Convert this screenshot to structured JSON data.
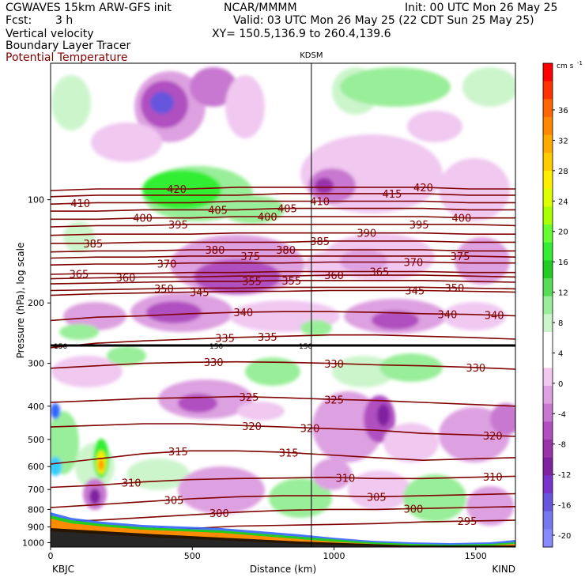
{
  "header": {
    "model": "CGWAVES 15km ARW-GFS init",
    "org": "NCAR/MMMM",
    "init": "Init: 00 UTC Mon 26 May 25",
    "fcst_label": "Fcst:",
    "fcst_value": "3 h",
    "valid": "Valid: 03 UTC Mon 26 May 25 (22 CDT Sun 25 May 25)",
    "field1": "Vertical velocity",
    "field2": "Boundary Layer Tracer",
    "field3": "Potential Temperature",
    "xy": "XY= 150.5,136.9 to 260.4,139.6"
  },
  "colors": {
    "theta_line": "#800000",
    "terrain": "#ff8c00",
    "upward_shading": "#33dd33",
    "downward_shading": "#9933bb"
  },
  "chart_data": {
    "type": "contour_cross_section",
    "title": "",
    "xlabel": "Distance (km)",
    "ylabel": "Pressure (hPa), log scale",
    "x_ticks": [
      0,
      500,
      1000,
      1500
    ],
    "xlim": [
      0,
      1640
    ],
    "y_ticks": [
      100,
      200,
      300,
      400,
      500,
      600,
      700,
      800,
      900,
      1000
    ],
    "y_scale": "log",
    "ylim": [
      1030,
      40
    ],
    "left_station": "KBJC",
    "right_station": "KIND",
    "marker_label": "KDSM",
    "marker_x_km": 920,
    "tropopause_label": "150",
    "colorbar": {
      "unit": "cm s",
      "unit_exp": "-1",
      "tick_labels": [
        "36",
        "32",
        "28",
        "24",
        "20",
        "16",
        "12",
        "8",
        "4",
        "0",
        "-4",
        "-8",
        "-12",
        "-16",
        "-20"
      ],
      "colors": [
        "#ff0000",
        "#ff3300",
        "#ff6600",
        "#ff8800",
        "#ffaa00",
        "#ffcc00",
        "#ffee00",
        "#ddff00",
        "#aaff00",
        "#66ff33",
        "#33ee33",
        "#22cc22",
        "#55dd55",
        "#99ee99",
        "#ccf5cc",
        "#ffffff",
        "#ffffff",
        "#f0c8f0",
        "#dda0e0",
        "#c878d0",
        "#b050c0",
        "#9933aa",
        "#8022a0",
        "#7733cc",
        "#6655dd",
        "#7777ee",
        "#8888ff"
      ]
    },
    "isentropes": [
      {
        "theta": 295,
        "p": [
          980,
          950,
          930,
          910,
          895,
          890,
          885,
          880,
          870,
          865,
          860
        ],
        "labels": [
          {
            "x": 365,
            "text": "295"
          },
          {
            "x": 1470,
            "text": "295"
          }
        ]
      },
      {
        "theta": 300,
        "p": [
          870,
          860,
          845,
          830,
          815,
          805,
          800,
          800,
          795,
          790,
          785
        ],
        "labels": [
          {
            "x": 595,
            "text": "300"
          },
          {
            "x": 1280,
            "text": "300"
          }
        ]
      },
      {
        "theta": 305,
        "p": [
          790,
          775,
          760,
          745,
          735,
          730,
          730,
          735,
          730,
          725,
          720
        ],
        "labels": [
          {
            "x": 435,
            "text": "305"
          },
          {
            "x": 1150,
            "text": "305"
          }
        ]
      },
      {
        "theta": 310,
        "p": [
          690,
          680,
          665,
          655,
          650,
          648,
          645,
          650,
          650,
          645,
          640
        ],
        "labels": [
          {
            "x": 285,
            "text": "310"
          },
          {
            "x": 1040,
            "text": "310"
          },
          {
            "x": 1560,
            "text": "310"
          }
        ]
      },
      {
        "theta": 315,
        "p": [
          590,
          570,
          550,
          540,
          540,
          545,
          555,
          565,
          575,
          570,
          565
        ],
        "labels": [
          {
            "x": 450,
            "text": "315"
          },
          {
            "x": 840,
            "text": "315"
          }
        ]
      },
      {
        "theta": 320,
        "p": [
          460,
          455,
          450,
          450,
          455,
          460,
          465,
          470,
          480,
          485,
          490
        ],
        "labels": [
          {
            "x": 710,
            "text": "320"
          },
          {
            "x": 915,
            "text": "320"
          },
          {
            "x": 1560,
            "text": "320"
          }
        ]
      },
      {
        "theta": 325,
        "p": [
          390,
          385,
          380,
          378,
          375,
          378,
          382,
          385,
          390,
          395,
          400
        ],
        "labels": [
          {
            "x": 700,
            "text": "325"
          },
          {
            "x": 1000,
            "text": "325"
          }
        ]
      },
      {
        "theta": 330,
        "p": [
          310,
          305,
          300,
          298,
          297,
          298,
          300,
          303,
          305,
          308,
          312
        ],
        "labels": [
          {
            "x": 575,
            "text": "330"
          },
          {
            "x": 1000,
            "text": "330"
          },
          {
            "x": 1500,
            "text": "330"
          }
        ]
      },
      {
        "theta": 335,
        "p": [
          270,
          262,
          258,
          255,
          252,
          250,
          248,
          248,
          250,
          252,
          255
        ],
        "labels": [
          {
            "x": 615,
            "text": "335"
          },
          {
            "x": 765,
            "text": "335"
          }
        ]
      },
      {
        "theta": 340,
        "p": [
          225,
          220,
          218,
          215,
          213,
          212,
          212,
          213,
          215,
          216,
          218
        ],
        "labels": [
          {
            "x": 680,
            "text": "340"
          },
          {
            "x": 1400,
            "text": "340"
          },
          {
            "x": 1565,
            "text": "340"
          }
        ]
      },
      {
        "theta": 345,
        "p": [
          190,
          188,
          187,
          186,
          185,
          185,
          184,
          184,
          184,
          185,
          186
        ],
        "labels": [
          {
            "x": 525,
            "text": "345"
          },
          {
            "x": 1285,
            "text": "345"
          }
        ]
      },
      {
        "theta": 350,
        "p": [
          184,
          183,
          182,
          181,
          181,
          180,
          180,
          180,
          180,
          181,
          182
        ],
        "labels": [
          {
            "x": 400,
            "text": "350"
          },
          {
            "x": 1425,
            "text": "350"
          }
        ]
      },
      {
        "theta": 355,
        "p": [
          176,
          175,
          174,
          173,
          173,
          172,
          172,
          172,
          172,
          173,
          174
        ],
        "labels": [
          {
            "x": 710,
            "text": "355"
          },
          {
            "x": 850,
            "text": "355"
          }
        ]
      },
      {
        "theta": 360,
        "p": [
          170,
          169,
          168,
          168,
          167,
          167,
          166,
          166,
          166,
          167,
          168
        ],
        "labels": [
          {
            "x": 265,
            "text": "360"
          },
          {
            "x": 1000,
            "text": "360"
          }
        ]
      },
      {
        "theta": 365,
        "p": [
          165,
          164,
          164,
          163,
          163,
          162,
          162,
          162,
          162,
          163,
          163
        ],
        "labels": [
          {
            "x": 100,
            "text": "365"
          },
          {
            "x": 1160,
            "text": "365"
          }
        ]
      },
      {
        "theta": 370,
        "p": [
          155,
          154,
          154,
          153,
          153,
          153,
          152,
          152,
          152,
          153,
          153
        ],
        "labels": [
          {
            "x": 410,
            "text": "370"
          },
          {
            "x": 1280,
            "text": "370"
          }
        ]
      },
      {
        "theta": 375,
        "p": [
          148,
          147,
          147,
          146,
          146,
          146,
          146,
          146,
          146,
          146,
          147
        ],
        "labels": [
          {
            "x": 705,
            "text": "375"
          },
          {
            "x": 1445,
            "text": "375"
          }
        ]
      },
      {
        "theta": 380,
        "p": [
          142,
          141,
          141,
          140,
          140,
          140,
          140,
          140,
          140,
          141,
          141
        ],
        "labels": [
          {
            "x": 580,
            "text": "380"
          },
          {
            "x": 830,
            "text": "380"
          }
        ]
      },
      {
        "theta": 385,
        "p": [
          134,
          134,
          133,
          133,
          133,
          133,
          132,
          132,
          132,
          133,
          133
        ],
        "labels": [
          {
            "x": 150,
            "text": "385"
          },
          {
            "x": 950,
            "text": "385"
          }
        ]
      },
      {
        "theta": 390,
        "p": [
          127,
          126,
          126,
          126,
          125,
          125,
          125,
          125,
          125,
          126,
          126
        ],
        "labels": [
          {
            "x": 1115,
            "text": "390"
          }
        ]
      },
      {
        "theta": 395,
        "p": [
          120,
          119,
          119,
          118,
          118,
          118,
          118,
          118,
          118,
          118,
          119
        ],
        "labels": [
          {
            "x": 450,
            "text": "395"
          },
          {
            "x": 1300,
            "text": "395"
          }
        ]
      },
      {
        "theta": 400,
        "p": [
          114,
          114,
          113,
          113,
          112,
          112,
          112,
          112,
          112,
          113,
          113
        ],
        "labels": [
          {
            "x": 325,
            "text": "400"
          },
          {
            "x": 765,
            "text": "400"
          },
          {
            "x": 1450,
            "text": "400"
          }
        ]
      },
      {
        "theta": 405,
        "p": [
          108,
          108,
          107,
          107,
          107,
          106,
          106,
          106,
          106,
          107,
          107
        ],
        "labels": [
          {
            "x": 590,
            "text": "405"
          },
          {
            "x": 835,
            "text": "405"
          }
        ]
      },
      {
        "theta": 410,
        "p": [
          103,
          102,
          102,
          102,
          101,
          101,
          101,
          101,
          101,
          102,
          102
        ],
        "labels": [
          {
            "x": 105,
            "text": "410"
          },
          {
            "x": 950,
            "text": "410"
          }
        ]
      },
      {
        "theta": 415,
        "p": [
          98,
          97,
          97,
          97,
          97,
          96,
          96,
          96,
          96,
          97,
          97
        ],
        "labels": [
          {
            "x": 1205,
            "text": "415"
          }
        ]
      },
      {
        "theta": 420,
        "p": [
          94,
          93,
          93,
          93,
          92,
          92,
          92,
          92,
          92,
          93,
          93
        ],
        "labels": [
          {
            "x": 445,
            "text": "420"
          },
          {
            "x": 1315,
            "text": "420"
          }
        ]
      }
    ],
    "isentrope_x": [
      0,
      164,
      328,
      492,
      656,
      820,
      984,
      1148,
      1312,
      1476,
      1640
    ]
  }
}
